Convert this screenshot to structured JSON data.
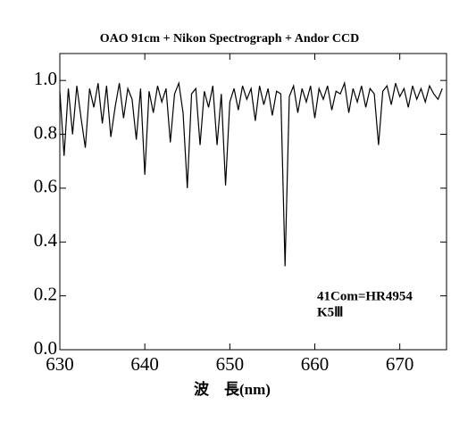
{
  "chart_data": {
    "type": "line",
    "title": "OAO 91cm + Nikon Spectrograph + Andor CCD",
    "x_label": "波　長(nm)",
    "annotations": [
      "41Com=HR4954",
      "K5Ⅲ"
    ],
    "xlim": [
      630,
      675.5
    ],
    "xticks": [
      630,
      640,
      650,
      660,
      670
    ],
    "ylim": [
      0,
      1.1
    ],
    "yticks": [
      {
        "value": 0,
        "label": "0.0"
      },
      0.2,
      0.4,
      0.6,
      0.8,
      {
        "value": 1,
        "label": "1.0"
      }
    ],
    "x": [
      630,
      630.5,
      631,
      631.5,
      632,
      632.5,
      633,
      633.5,
      634,
      634.5,
      635,
      635.5,
      636,
      636.5,
      637,
      637.5,
      638,
      638.5,
      639,
      639.5,
      640,
      640.5,
      641,
      641.5,
      642,
      642.5,
      643,
      643.5,
      644,
      644.5,
      645,
      645.5,
      646,
      646.5,
      647,
      647.5,
      648,
      648.5,
      649,
      649.5,
      650,
      650.5,
      651,
      651.5,
      652,
      652.5,
      653,
      653.5,
      654,
      654.5,
      655,
      655.5,
      656,
      656.5,
      657,
      657.5,
      658,
      658.5,
      659,
      659.5,
      660,
      660.5,
      661,
      661.5,
      662,
      662.5,
      663,
      663.5,
      664,
      664.5,
      665,
      665.5,
      666,
      666.5,
      667,
      667.5,
      668,
      668.5,
      669,
      669.5,
      670,
      670.5,
      671,
      671.5,
      672,
      672.5,
      673,
      673.5,
      674,
      674.5,
      675
    ],
    "series": [
      {
        "color": "#000000",
        "values": [
          0.96,
          0.72,
          0.97,
          0.8,
          0.98,
          0.86,
          0.75,
          0.97,
          0.9,
          0.99,
          0.84,
          0.98,
          0.79,
          0.9,
          0.99,
          0.86,
          0.97,
          0.93,
          0.78,
          0.97,
          0.65,
          0.96,
          0.88,
          0.98,
          0.92,
          0.97,
          0.77,
          0.95,
          0.99,
          0.88,
          0.6,
          0.95,
          0.97,
          0.76,
          0.96,
          0.9,
          0.98,
          0.76,
          0.95,
          0.61,
          0.92,
          0.97,
          0.89,
          0.98,
          0.93,
          0.97,
          0.85,
          0.98,
          0.91,
          0.97,
          0.87,
          0.96,
          0.95,
          0.31,
          0.94,
          0.98,
          0.88,
          0.97,
          0.92,
          0.98,
          0.86,
          0.97,
          0.93,
          0.98,
          0.89,
          0.96,
          0.95,
          0.99,
          0.88,
          0.97,
          0.92,
          0.98,
          0.9,
          0.97,
          0.95,
          0.76,
          0.96,
          0.98,
          0.91,
          0.99,
          0.94,
          0.97,
          0.9,
          0.98,
          0.93,
          0.97,
          0.92,
          0.98,
          0.95,
          0.93,
          0.97
        ]
      }
    ]
  }
}
